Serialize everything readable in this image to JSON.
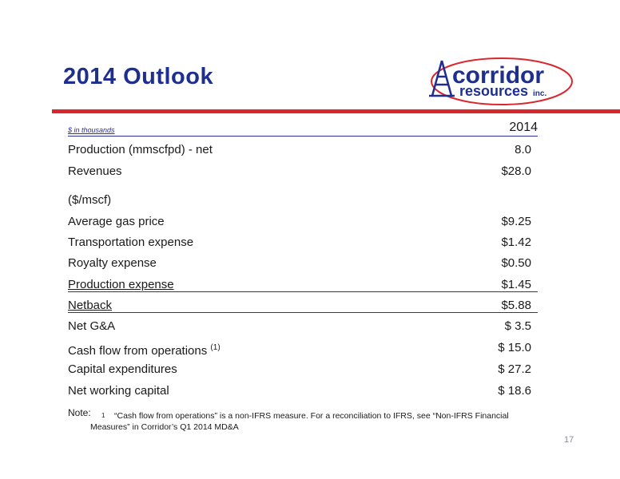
{
  "header": {
    "title": "2014 Outlook",
    "logo": {
      "main": "corridor",
      "sub": "resources",
      "suffix": "inc."
    }
  },
  "table": {
    "units_label": "$ in thousands",
    "year": "2014",
    "rows": [
      {
        "label": "Production (mmscfpd) - net",
        "value": "8.0"
      },
      {
        "label": "Revenues",
        "value": "$28.0"
      },
      {
        "label": "($/mscf)",
        "value": ""
      },
      {
        "label": "Average gas price",
        "value": "$9.25"
      },
      {
        "label": "Transportation expense",
        "value": "$1.42"
      },
      {
        "label": "Royalty expense",
        "value": "$0.50"
      },
      {
        "label": "Production expense",
        "value": "$1.45"
      },
      {
        "label": "Netback",
        "value": "$5.88"
      },
      {
        "label": "Net G&A",
        "value": "$ 3.5"
      },
      {
        "label": "Cash flow from operations",
        "footnote": "(1)",
        "value": "$ 15.0"
      },
      {
        "label": "Capital expenditures",
        "value": "$ 27.2"
      },
      {
        "label": "Net working capital",
        "value": "$ 18.6"
      }
    ]
  },
  "footnote": {
    "label": "Note:",
    "number": "1",
    "text": "“Cash flow from operations” is a non-IFRS measure.  For  a reconciliation to IFRS, see “Non-IFRS Financial Measures” in Corridor’s Q1 2014 MD&A"
  },
  "page_number": "17",
  "colors": {
    "title": "#1f2f8f",
    "accent_red": "#d9272e",
    "rule_blue": "#2b2f9a"
  }
}
